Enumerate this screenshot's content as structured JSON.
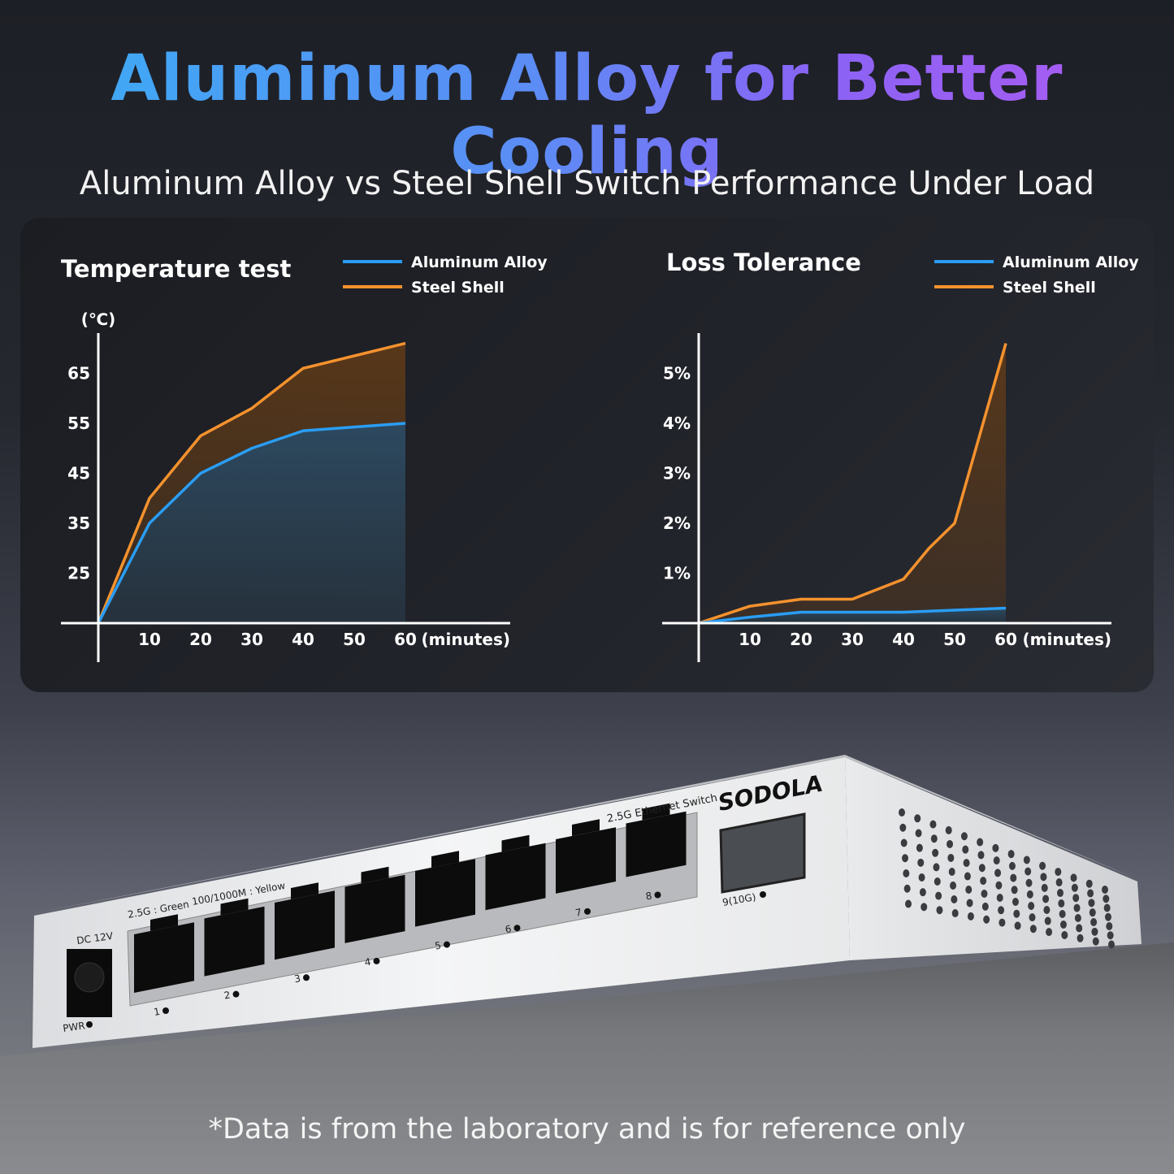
{
  "header": {
    "title": "Aluminum Alloy for Better Cooling",
    "subtitle": "Aluminum Alloy vs Steel Shell Switch Performance Under Load"
  },
  "colors": {
    "aluminum": "#2a9df4",
    "steel": "#f5922e",
    "title_start": "#3aaef5",
    "title_end": "#b05af0"
  },
  "chart_data": [
    {
      "type": "area",
      "title": "Temperature test",
      "ylabel": "(℃)",
      "xlabel": "(minutes)",
      "x_ticks": [
        "10",
        "20",
        "30",
        "40",
        "50",
        "60"
      ],
      "y_ticks": [
        "25",
        "35",
        "45",
        "55",
        "65"
      ],
      "y_tick_values": [
        25,
        35,
        45,
        55,
        65
      ],
      "xlim": [
        0,
        60
      ],
      "ylim": [
        15,
        75
      ],
      "grid": false,
      "legend": "top",
      "series": [
        {
          "name": "Aluminum Alloy",
          "color": "#2a9df4",
          "x": [
            0,
            10,
            20,
            30,
            40,
            60
          ],
          "y": [
            15,
            35,
            45,
            50,
            53.5,
            55
          ]
        },
        {
          "name": "Steel Shell",
          "color": "#f5922e",
          "x": [
            0,
            10,
            20,
            30,
            40,
            60
          ],
          "y": [
            15,
            40,
            52.5,
            58,
            66,
            71
          ]
        }
      ]
    },
    {
      "type": "area",
      "title": "Loss Tolerance",
      "ylabel": "",
      "xlabel": "(minutes)",
      "x_ticks": [
        "10",
        "20",
        "30",
        "40",
        "50",
        "60"
      ],
      "y_ticks": [
        "1%",
        "2%",
        "3%",
        "4%",
        "5%"
      ],
      "y_tick_values": [
        1,
        2,
        3,
        4,
        5
      ],
      "xlim": [
        0,
        60
      ],
      "ylim": [
        0,
        6
      ],
      "grid": false,
      "legend": "top-right",
      "series": [
        {
          "name": "Aluminum Alloy",
          "color": "#2a9df4",
          "x": [
            0,
            10,
            20,
            30,
            40,
            60
          ],
          "y": [
            0,
            0.12,
            0.22,
            0.22,
            0.22,
            0.3
          ]
        },
        {
          "name": "Steel Shell",
          "color": "#f5922e",
          "x": [
            0,
            10,
            20,
            30,
            40,
            45,
            50,
            60
          ],
          "y": [
            0,
            0.34,
            0.48,
            0.48,
            0.88,
            1.5,
            2.0,
            5.6
          ]
        }
      ]
    }
  ],
  "product": {
    "brand": "SODOLA",
    "model_label": "2.5G Ethernet Switch",
    "led_legend_green": "2.5G : Green",
    "led_legend_yellow": "100/1000M : Yellow",
    "power_label": "DC 12V",
    "pwr_led_label": "PWR",
    "ports": [
      "1",
      "2",
      "3",
      "4",
      "5",
      "6",
      "7",
      "8"
    ],
    "sfp_port": "9(10G)"
  },
  "footnote": "*Data is from the laboratory and is for reference only"
}
